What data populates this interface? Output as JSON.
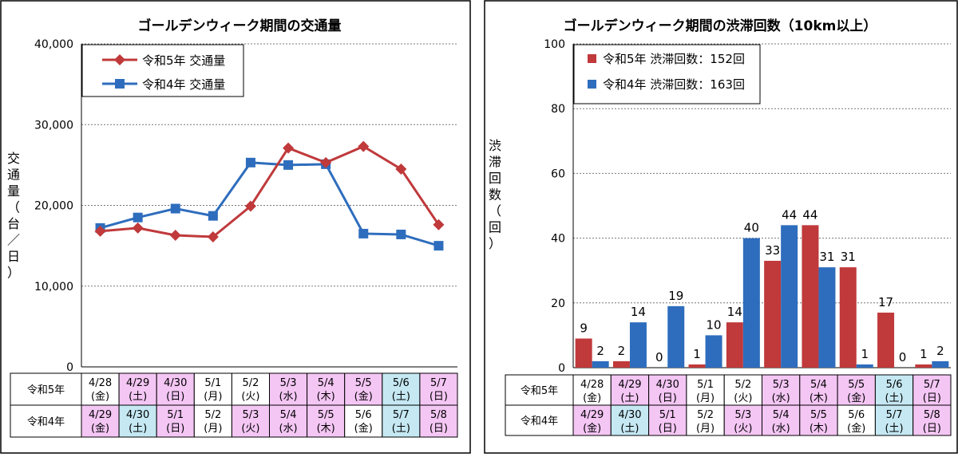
{
  "chart_data": [
    {
      "type": "line",
      "title": "ゴールデンウィーク期間の交通量",
      "ylabel": "交通量（台／日）",
      "ylim": [
        0,
        40000
      ],
      "yticks": [
        "0",
        "10,000",
        "20,000",
        "30,000",
        "40,000"
      ],
      "ytick_values": [
        0,
        10000,
        20000,
        30000,
        40000
      ],
      "grid": true,
      "legend_position": "top-left",
      "series": [
        {
          "name": "令和5年 交通量",
          "color": "#c0393b",
          "marker": "diamond",
          "values": [
            16800,
            17200,
            16300,
            16100,
            19900,
            27100,
            25300,
            27300,
            24500,
            17600
          ]
        },
        {
          "name": "令和4年 交通量",
          "color": "#2e6dbd",
          "marker": "square",
          "values": [
            17200,
            18500,
            19600,
            18700,
            25300,
            25000,
            25100,
            16500,
            16400,
            15000
          ]
        }
      ],
      "table": {
        "row_labels": [
          "令和5年",
          "令和4年"
        ],
        "rows": [
          [
            {
              "date": "4/28",
              "day": "(金)",
              "fill": "#ffffff"
            },
            {
              "date": "4/29",
              "day": "(土)",
              "fill": "#f4c6f4"
            },
            {
              "date": "4/30",
              "day": "(日)",
              "fill": "#f4c6f4"
            },
            {
              "date": "5/1",
              "day": "(月)",
              "fill": "#ffffff"
            },
            {
              "date": "5/2",
              "day": "(火)",
              "fill": "#ffffff"
            },
            {
              "date": "5/3",
              "day": "(水)",
              "fill": "#f4c6f4"
            },
            {
              "date": "5/4",
              "day": "(木)",
              "fill": "#f4c6f4"
            },
            {
              "date": "5/5",
              "day": "(金)",
              "fill": "#f4c6f4"
            },
            {
              "date": "5/6",
              "day": "(土)",
              "fill": "#c5e8f3"
            },
            {
              "date": "5/7",
              "day": "(日)",
              "fill": "#f4c6f4"
            }
          ],
          [
            {
              "date": "4/29",
              "day": "(金)",
              "fill": "#f4c6f4"
            },
            {
              "date": "4/30",
              "day": "(土)",
              "fill": "#c5e8f3"
            },
            {
              "date": "5/1",
              "day": "(日)",
              "fill": "#f4c6f4"
            },
            {
              "date": "5/2",
              "day": "(月)",
              "fill": "#ffffff"
            },
            {
              "date": "5/3",
              "day": "(火)",
              "fill": "#f4c6f4"
            },
            {
              "date": "5/4",
              "day": "(水)",
              "fill": "#f4c6f4"
            },
            {
              "date": "5/5",
              "day": "(木)",
              "fill": "#f4c6f4"
            },
            {
              "date": "5/6",
              "day": "(金)",
              "fill": "#ffffff"
            },
            {
              "date": "5/7",
              "day": "(土)",
              "fill": "#c5e8f3"
            },
            {
              "date": "5/8",
              "day": "(日)",
              "fill": "#f4c6f4"
            }
          ]
        ]
      }
    },
    {
      "type": "bar",
      "title": "ゴールデンウィーク期間の渋滞回数（10km以上）",
      "ylabel": "渋滞回数（回）",
      "ylim": [
        0,
        100
      ],
      "yticks": [
        "0",
        "20",
        "40",
        "60",
        "80",
        "100"
      ],
      "ytick_values": [
        0,
        20,
        40,
        60,
        80,
        100
      ],
      "grid": true,
      "legend_position": "top-left",
      "series": [
        {
          "name": "令和5年 渋滞回数：152回",
          "color": "#c0393b",
          "values": [
            9,
            2,
            0,
            1,
            14,
            33,
            44,
            31,
            17,
            1
          ]
        },
        {
          "name": "令和4年 渋滞回数：163回",
          "color": "#2e6dbd",
          "values": [
            2,
            14,
            19,
            10,
            40,
            44,
            31,
            1,
            0,
            2
          ]
        }
      ],
      "table": {
        "row_labels": [
          "令和5年",
          "令和4年"
        ],
        "rows": [
          [
            {
              "date": "4/28",
              "day": "(金)",
              "fill": "#ffffff"
            },
            {
              "date": "4/29",
              "day": "(土)",
              "fill": "#f4c6f4"
            },
            {
              "date": "4/30",
              "day": "(日)",
              "fill": "#f4c6f4"
            },
            {
              "date": "5/1",
              "day": "(月)",
              "fill": "#ffffff"
            },
            {
              "date": "5/2",
              "day": "(火)",
              "fill": "#ffffff"
            },
            {
              "date": "5/3",
              "day": "(水)",
              "fill": "#f4c6f4"
            },
            {
              "date": "5/4",
              "day": "(木)",
              "fill": "#f4c6f4"
            },
            {
              "date": "5/5",
              "day": "(金)",
              "fill": "#f4c6f4"
            },
            {
              "date": "5/6",
              "day": "(土)",
              "fill": "#c5e8f3"
            },
            {
              "date": "5/7",
              "day": "(日)",
              "fill": "#f4c6f4"
            }
          ],
          [
            {
              "date": "4/29",
              "day": "(金)",
              "fill": "#f4c6f4"
            },
            {
              "date": "4/30",
              "day": "(土)",
              "fill": "#c5e8f3"
            },
            {
              "date": "5/1",
              "day": "(日)",
              "fill": "#f4c6f4"
            },
            {
              "date": "5/2",
              "day": "(月)",
              "fill": "#ffffff"
            },
            {
              "date": "5/3",
              "day": "(火)",
              "fill": "#f4c6f4"
            },
            {
              "date": "5/4",
              "day": "(水)",
              "fill": "#f4c6f4"
            },
            {
              "date": "5/5",
              "day": "(木)",
              "fill": "#f4c6f4"
            },
            {
              "date": "5/6",
              "day": "(金)",
              "fill": "#ffffff"
            },
            {
              "date": "5/7",
              "day": "(土)",
              "fill": "#c5e8f3"
            },
            {
              "date": "5/8",
              "day": "(日)",
              "fill": "#f4c6f4"
            }
          ]
        ]
      }
    }
  ]
}
